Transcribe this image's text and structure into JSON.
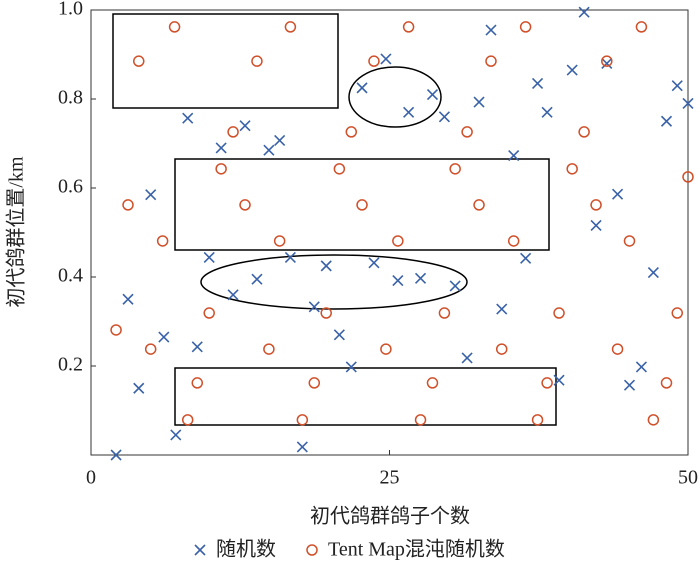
{
  "chart_data": {
    "type": "scatter",
    "xlabel": "初代鸽群鸽子个数",
    "ylabel": "初代鸽群位置/km",
    "xlim": [
      0,
      50
    ],
    "ylim": [
      0,
      1
    ],
    "xticks": [
      0,
      25,
      50
    ],
    "yticks": [
      0.2,
      0.4,
      0.6,
      0.8,
      {
        "value": 1,
        "label": "1.0"
      }
    ],
    "legend": "bottom",
    "series": [
      {
        "name": "随机数",
        "color": "#3a62a8",
        "marker": "x",
        "x": [
          2.1,
          3.1,
          4.0,
          5.0,
          6.1,
          7.1,
          8.1,
          8.9,
          9.9,
          10.9,
          11.9,
          12.9,
          13.9,
          14.9,
          15.8,
          16.7,
          17.7,
          18.7,
          19.7,
          20.8,
          21.8,
          22.7,
          23.7,
          24.7,
          25.7,
          26.6,
          27.6,
          28.6,
          29.6,
          30.5,
          31.5,
          32.5,
          33.5,
          34.4,
          35.4,
          36.4,
          37.4,
          38.2,
          39.2,
          40.3,
          41.3,
          42.3,
          43.2,
          44.1,
          45.1,
          46.1,
          47.1,
          48.2,
          49.1,
          50.0
        ],
        "values": [
          0,
          0.35,
          0.15,
          0.585,
          0.265,
          0.045,
          0.757,
          0.243,
          0.444,
          0.69,
          0.36,
          0.74,
          0.395,
          0.685,
          0.707,
          0.444,
          0.018,
          0.333,
          0.425,
          0.27,
          0.198,
          0.825,
          0.432,
          0.89,
          0.392,
          0.77,
          0.397,
          0.81,
          0.76,
          0.38,
          0.218,
          0.793,
          0.955,
          0.328,
          0.673,
          0.442,
          0.835,
          0.77,
          0.168,
          0.865,
          0.995,
          0.516,
          0.88,
          0.586,
          0.157,
          0.198,
          0.41,
          0.75,
          0.83,
          0.79
        ]
      },
      {
        "name": "Tent Map混沌随机数",
        "color": "#d0502a",
        "marker": "o",
        "x": [
          2.1,
          3.1,
          4.0,
          5.0,
          6.0,
          7.0,
          8.1,
          8.9,
          9.9,
          10.9,
          11.9,
          12.9,
          13.9,
          14.9,
          15.8,
          16.7,
          17.7,
          18.7,
          19.7,
          20.8,
          21.8,
          22.7,
          23.7,
          24.7,
          25.7,
          26.6,
          27.6,
          28.6,
          29.6,
          30.5,
          31.5,
          32.5,
          33.5,
          34.4,
          35.4,
          36.4,
          37.4,
          38.2,
          39.2,
          40.3,
          41.3,
          42.3,
          43.2,
          44.1,
          45.1,
          46.1,
          47.1,
          48.2,
          49.1,
          50.0
        ],
        "values": [
          0.281,
          0.562,
          0.885,
          0.238,
          0.481,
          0.962,
          0.079,
          0.162,
          0.319,
          0.643,
          0.726,
          0.562,
          0.885,
          0.238,
          0.481,
          0.962,
          0.079,
          0.162,
          0.319,
          0.643,
          0.726,
          0.562,
          0.885,
          0.238,
          0.481,
          0.962,
          0.079,
          0.162,
          0.319,
          0.643,
          0.726,
          0.562,
          0.885,
          0.238,
          0.481,
          0.962,
          0.079,
          0.162,
          0.319,
          0.643,
          0.726,
          0.562,
          0.885,
          0.238,
          0.481,
          0.962,
          0.079,
          0.162,
          0.319,
          0.625
        ]
      }
    ]
  }
}
